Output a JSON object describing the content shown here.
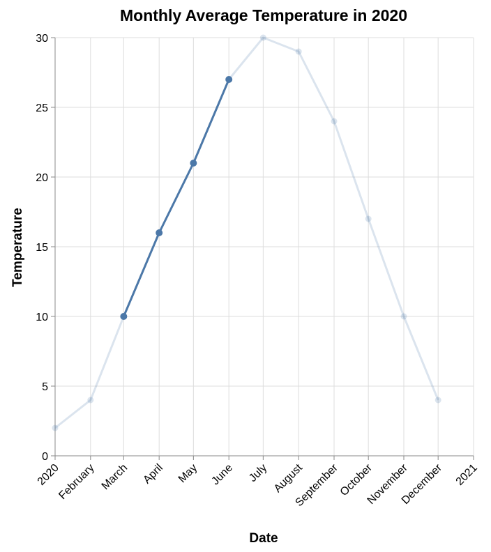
{
  "chart_data": {
    "type": "line",
    "title": "Monthly Average Temperature in 2020",
    "xlabel": "Date",
    "ylabel": "Temperature",
    "ylim": [
      0,
      30
    ],
    "yticks": [
      0,
      5,
      10,
      15,
      20,
      25,
      30
    ],
    "xticks": [
      "2020",
      "February",
      "March",
      "April",
      "May",
      "June",
      "July",
      "August",
      "September",
      "October",
      "November",
      "December",
      "2021"
    ],
    "grid": true,
    "x": [
      "2020-01",
      "2020-02",
      "2020-03",
      "2020-04",
      "2020-05",
      "2020-06",
      "2020-07",
      "2020-08",
      "2020-09",
      "2020-10",
      "2020-11",
      "2020-12"
    ],
    "values": [
      2,
      4,
      10,
      16,
      21,
      27,
      30,
      29,
      24,
      17,
      10,
      4
    ],
    "highlight_range": [
      "2020-03",
      "2020-06"
    ],
    "colors": {
      "line": "#4c78a8",
      "highlight": "#4c78a8",
      "faded_opacity": 0.2
    }
  }
}
